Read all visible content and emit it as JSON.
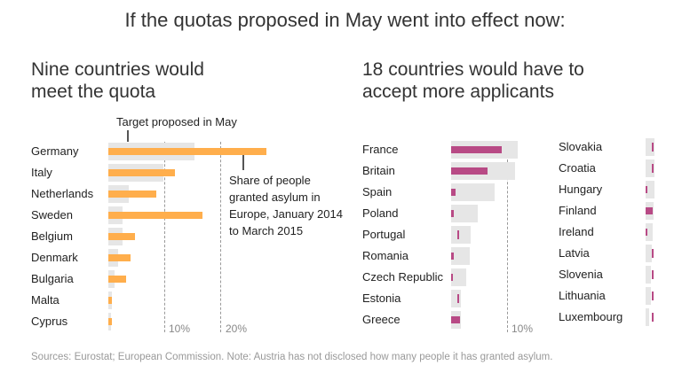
{
  "title": "If the quotas proposed in May went into effect now:",
  "source": "Sources: Eurostat; European Commission. Note: Austria has not disclosed how many people it has granted asylum.",
  "colors": {
    "target": "#e6e6e6",
    "meets": "#ffae4c",
    "below": "#b84a85"
  },
  "chart_data": [
    {
      "type": "bar",
      "orientation": "horizontal",
      "title": "Nine countries would meet the quota",
      "annotations": [
        "Target proposed in May",
        "Share of people granted asylum in Europe, January 2014 to March 2015"
      ],
      "tick_labels": [
        "10%",
        "20%"
      ],
      "xlim": [
        0,
        30
      ],
      "categories": [
        "Germany",
        "Italy",
        "Netherlands",
        "Sweden",
        "Belgium",
        "Denmark",
        "Bulgaria",
        "Malta",
        "Cyprus"
      ],
      "series": [
        {
          "name": "Target proposed in May",
          "values": [
            15.3,
            9.8,
            3.6,
            2.5,
            2.5,
            1.7,
            1.1,
            0.6,
            0.4
          ]
        },
        {
          "name": "Share of people granted asylum in Europe, January 2014 to March 2015",
          "values": [
            28.0,
            11.8,
            8.5,
            16.7,
            4.8,
            4.0,
            3.2,
            0.7,
            0.6
          ]
        }
      ]
    },
    {
      "type": "bar",
      "orientation": "horizontal",
      "title": "18 countries would have to accept more applicants",
      "tick_labels": [
        "10%"
      ],
      "xlim": [
        0,
        15
      ],
      "categories": [
        "France",
        "Britain",
        "Spain",
        "Poland",
        "Portugal",
        "Romania",
        "Czech Republic",
        "Estonia",
        "Greece",
        "Slovakia",
        "Croatia",
        "Hungary",
        "Finland",
        "Ireland",
        "Latvia",
        "Slovenia",
        "Lithuania",
        "Luxembourg"
      ],
      "series": [
        {
          "name": "Target proposed in May",
          "values": [
            11.8,
            11.4,
            7.7,
            4.8,
            3.5,
            3.3,
            2.7,
            1.7,
            1.7,
            1.6,
            1.6,
            1.6,
            1.4,
            1.3,
            1.1,
            1.0,
            1.0,
            0.7
          ]
        },
        {
          "name": "Share of people granted asylum in Europe, January 2014 to March 2015",
          "values": [
            8.9,
            6.5,
            0.8,
            0.5,
            0.1,
            0.5,
            0.3,
            0.1,
            1.5,
            0.1,
            0.1,
            0.3,
            1.2,
            0.3,
            0.1,
            0.1,
            0.1,
            0.1
          ]
        }
      ]
    }
  ]
}
